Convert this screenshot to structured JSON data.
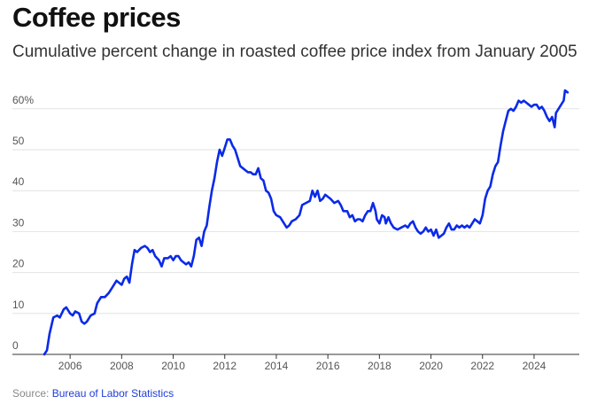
{
  "header": {
    "title": "Coffee prices",
    "subtitle": "Cumulative percent change in roasted coffee price index from January 2005"
  },
  "footer": {
    "source_label": "Source:",
    "source_link": "Bureau of Labor Statistics"
  },
  "colors": {
    "line": "#0a2ae8",
    "grid": "#e2e2e2",
    "axis": "#333333",
    "tick_text": "#555555",
    "link": "#1f3cd9"
  },
  "chart_data": {
    "type": "line",
    "title": "Coffee prices",
    "subtitle": "Cumulative percent change in roasted coffee price index from January 2005",
    "xlabel": "",
    "ylabel": "",
    "xlim": [
      2004.8,
      2025.0
    ],
    "ylim": [
      0,
      65
    ],
    "x_ticks": [
      2006,
      2008,
      2010,
      2012,
      2014,
      2016,
      2018,
      2020,
      2022,
      2024
    ],
    "y_ticks": [
      {
        "value": 0,
        "label": "0"
      },
      {
        "value": 10,
        "label": "10"
      },
      {
        "value": 20,
        "label": "20"
      },
      {
        "value": 30,
        "label": "30"
      },
      {
        "value": 40,
        "label": "40"
      },
      {
        "value": 50,
        "label": "50"
      },
      {
        "value": 60,
        "label": "60%"
      }
    ],
    "grid": true,
    "series": [
      {
        "values": [
          [
            2005.0,
            0
          ],
          [
            2005.1,
            1
          ],
          [
            2005.2,
            5
          ],
          [
            2005.35,
            9
          ],
          [
            2005.5,
            9.5
          ],
          [
            2005.6,
            9
          ],
          [
            2005.75,
            11
          ],
          [
            2005.85,
            11.5
          ],
          [
            2006.0,
            10
          ],
          [
            2006.1,
            9.5
          ],
          [
            2006.2,
            10.5
          ],
          [
            2006.35,
            10
          ],
          [
            2006.45,
            8
          ],
          [
            2006.55,
            7.5
          ],
          [
            2006.65,
            8
          ],
          [
            2006.8,
            9.5
          ],
          [
            2006.95,
            10
          ],
          [
            2007.05,
            12.5
          ],
          [
            2007.2,
            14
          ],
          [
            2007.35,
            14
          ],
          [
            2007.5,
            15
          ],
          [
            2007.65,
            16.5
          ],
          [
            2007.8,
            18
          ],
          [
            2007.9,
            17.5
          ],
          [
            2008.0,
            17
          ],
          [
            2008.1,
            18.5
          ],
          [
            2008.2,
            19
          ],
          [
            2008.3,
            17.5
          ],
          [
            2008.4,
            22
          ],
          [
            2008.5,
            25.5
          ],
          [
            2008.6,
            25
          ],
          [
            2008.75,
            26
          ],
          [
            2008.9,
            26.5
          ],
          [
            2009.0,
            26
          ],
          [
            2009.1,
            25
          ],
          [
            2009.2,
            25.5
          ],
          [
            2009.3,
            24
          ],
          [
            2009.45,
            23
          ],
          [
            2009.55,
            21.5
          ],
          [
            2009.65,
            23.5
          ],
          [
            2009.8,
            23.5
          ],
          [
            2009.9,
            24
          ],
          [
            2010.0,
            23
          ],
          [
            2010.1,
            24
          ],
          [
            2010.2,
            24
          ],
          [
            2010.3,
            23
          ],
          [
            2010.4,
            22.5
          ],
          [
            2010.5,
            22
          ],
          [
            2010.6,
            22.5
          ],
          [
            2010.7,
            21.5
          ],
          [
            2010.8,
            24
          ],
          [
            2010.9,
            28
          ],
          [
            2011.0,
            28.5
          ],
          [
            2011.1,
            26.5
          ],
          [
            2011.2,
            30
          ],
          [
            2011.3,
            31.5
          ],
          [
            2011.4,
            36
          ],
          [
            2011.5,
            40
          ],
          [
            2011.6,
            43
          ],
          [
            2011.7,
            47
          ],
          [
            2011.8,
            50
          ],
          [
            2011.9,
            48.5
          ],
          [
            2012.0,
            50.5
          ],
          [
            2012.1,
            52.5
          ],
          [
            2012.2,
            52.5
          ],
          [
            2012.3,
            51
          ],
          [
            2012.4,
            50
          ],
          [
            2012.5,
            48
          ],
          [
            2012.6,
            46
          ],
          [
            2012.7,
            45.5
          ],
          [
            2012.8,
            45
          ],
          [
            2012.9,
            44.5
          ],
          [
            2013.0,
            44.5
          ],
          [
            2013.1,
            44
          ],
          [
            2013.2,
            44
          ],
          [
            2013.3,
            45.5
          ],
          [
            2013.4,
            43
          ],
          [
            2013.5,
            42.5
          ],
          [
            2013.6,
            40
          ],
          [
            2013.7,
            39.5
          ],
          [
            2013.8,
            38
          ],
          [
            2013.9,
            35
          ],
          [
            2014.0,
            34
          ],
          [
            2014.15,
            33.5
          ],
          [
            2014.3,
            32
          ],
          [
            2014.4,
            31
          ],
          [
            2014.5,
            31.5
          ],
          [
            2014.6,
            32.5
          ],
          [
            2014.75,
            33
          ],
          [
            2014.9,
            34
          ],
          [
            2015.0,
            36.5
          ],
          [
            2015.15,
            37
          ],
          [
            2015.3,
            37.5
          ],
          [
            2015.4,
            40
          ],
          [
            2015.5,
            38.5
          ],
          [
            2015.6,
            40
          ],
          [
            2015.7,
            37.5
          ],
          [
            2015.8,
            38
          ],
          [
            2015.9,
            39
          ],
          [
            2016.0,
            38.5
          ],
          [
            2016.1,
            38
          ],
          [
            2016.25,
            37
          ],
          [
            2016.4,
            37.5
          ],
          [
            2016.5,
            36.5
          ],
          [
            2016.6,
            35
          ],
          [
            2016.75,
            35
          ],
          [
            2016.85,
            33.5
          ],
          [
            2016.95,
            34
          ],
          [
            2017.05,
            32.5
          ],
          [
            2017.15,
            33
          ],
          [
            2017.25,
            33
          ],
          [
            2017.35,
            32.5
          ],
          [
            2017.45,
            34
          ],
          [
            2017.55,
            35
          ],
          [
            2017.65,
            35
          ],
          [
            2017.75,
            37
          ],
          [
            2017.85,
            35
          ],
          [
            2017.9,
            33
          ],
          [
            2018.0,
            32
          ],
          [
            2018.1,
            34
          ],
          [
            2018.2,
            33.5
          ],
          [
            2018.25,
            32
          ],
          [
            2018.35,
            33.5
          ],
          [
            2018.45,
            32
          ],
          [
            2018.55,
            31
          ],
          [
            2018.7,
            30.5
          ],
          [
            2018.85,
            31
          ],
          [
            2019.0,
            31.5
          ],
          [
            2019.1,
            31
          ],
          [
            2019.2,
            32
          ],
          [
            2019.3,
            32.5
          ],
          [
            2019.4,
            31
          ],
          [
            2019.5,
            30
          ],
          [
            2019.6,
            29.5
          ],
          [
            2019.7,
            30
          ],
          [
            2019.8,
            31
          ],
          [
            2019.9,
            30
          ],
          [
            2020.0,
            30.5
          ],
          [
            2020.1,
            29
          ],
          [
            2020.2,
            30.5
          ],
          [
            2020.3,
            28.5
          ],
          [
            2020.4,
            29
          ],
          [
            2020.5,
            29.5
          ],
          [
            2020.6,
            31
          ],
          [
            2020.7,
            32
          ],
          [
            2020.8,
            30.5
          ],
          [
            2020.9,
            30.5
          ],
          [
            2021.0,
            31.5
          ],
          [
            2021.1,
            31
          ],
          [
            2021.2,
            31.5
          ],
          [
            2021.3,
            31
          ],
          [
            2021.4,
            31.5
          ],
          [
            2021.5,
            31
          ],
          [
            2021.6,
            32
          ],
          [
            2021.7,
            33
          ],
          [
            2021.8,
            32.5
          ],
          [
            2021.9,
            32
          ],
          [
            2022.0,
            34
          ],
          [
            2022.1,
            38
          ],
          [
            2022.2,
            40
          ],
          [
            2022.3,
            41
          ],
          [
            2022.4,
            44
          ],
          [
            2022.5,
            46
          ],
          [
            2022.6,
            47
          ],
          [
            2022.7,
            51
          ],
          [
            2022.8,
            54.5
          ],
          [
            2022.9,
            57
          ],
          [
            2023.0,
            59.5
          ],
          [
            2023.1,
            60
          ],
          [
            2023.2,
            59.5
          ],
          [
            2023.3,
            60.5
          ],
          [
            2023.4,
            62
          ],
          [
            2023.5,
            61.5
          ],
          [
            2023.6,
            62
          ],
          [
            2023.7,
            61.5
          ],
          [
            2023.8,
            61
          ],
          [
            2023.9,
            60.5
          ],
          [
            2024.0,
            61
          ],
          [
            2024.1,
            61
          ],
          [
            2024.2,
            60
          ],
          [
            2024.3,
            60.5
          ],
          [
            2024.4,
            59.5
          ],
          [
            2024.5,
            58
          ],
          [
            2024.6,
            57
          ],
          [
            2024.7,
            58
          ],
          [
            2024.8,
            55.5
          ],
          [
            2024.85,
            59
          ],
          [
            2024.95,
            60
          ],
          [
            2025.05,
            61
          ],
          [
            2025.15,
            62
          ],
          [
            2025.2,
            64.5
          ],
          [
            2025.3,
            64
          ]
        ]
      }
    ]
  }
}
